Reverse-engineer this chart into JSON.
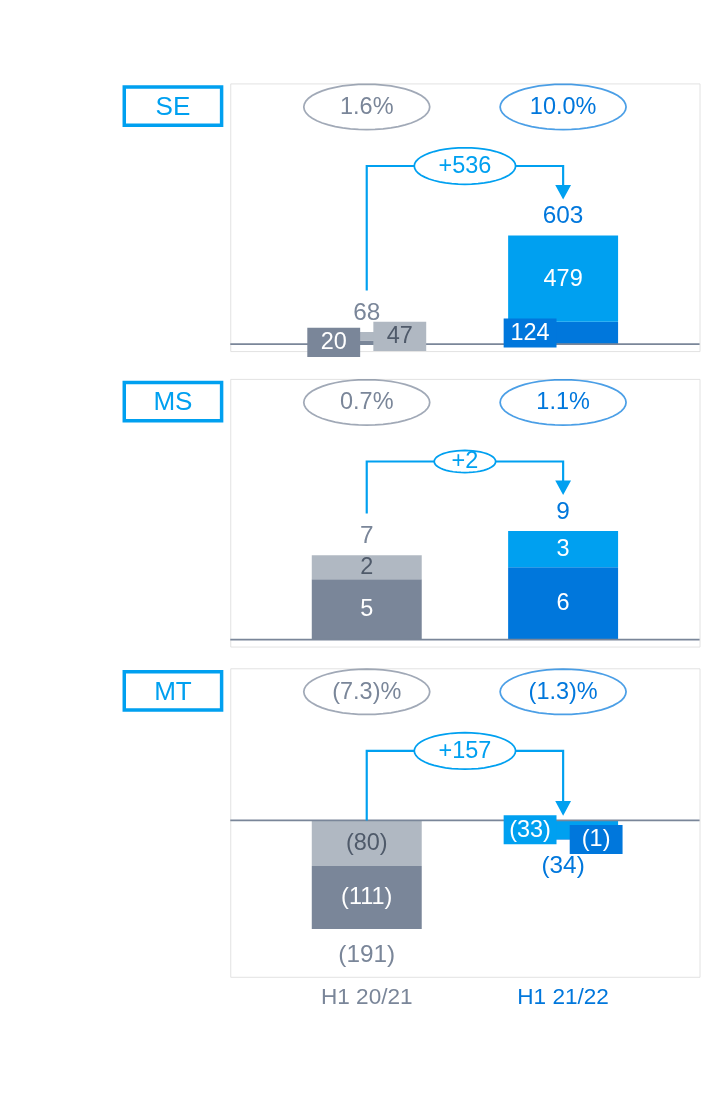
{
  "chart_data": [
    {
      "type": "bar",
      "title": "SE",
      "stacked": true,
      "categories": [
        null,
        null
      ],
      "tick_labels": false,
      "series": [
        {
          "colors": [
            "#7a8699",
            "#0077dc"
          ],
          "values": [
            20,
            124
          ],
          "value_labels": [
            "20",
            "124"
          ]
        },
        {
          "colors": [
            "#b0b8c2",
            "#00a0f0"
          ],
          "values": [
            47,
            479
          ],
          "value_labels": [
            "47",
            "479"
          ]
        }
      ],
      "totals": [
        "68",
        "603"
      ],
      "annotations": [
        "1.6%",
        "10.0%",
        "+536"
      ]
    },
    {
      "type": "bar",
      "title": "MS",
      "stacked": true,
      "categories": [
        null,
        null
      ],
      "tick_labels": false,
      "series": [
        {
          "colors": [
            "#7a8699",
            "#0077dc"
          ],
          "values": [
            5,
            6
          ],
          "value_labels": [
            "5",
            "6"
          ]
        },
        {
          "colors": [
            "#b0b8c2",
            "#00a0f0"
          ],
          "values": [
            2,
            3
          ],
          "value_labels": [
            "2",
            "3"
          ]
        }
      ],
      "totals": [
        "7",
        "9"
      ],
      "annotations": [
        "0.7%",
        "1.1%",
        "+2"
      ]
    },
    {
      "type": "bar",
      "title": "MT",
      "stacked": true,
      "categories": [
        "H1 20/21",
        "H1 21/22"
      ],
      "tick_labels": "x",
      "series": [
        {
          "colors": [
            "#b0b8c2",
            "#00a0f0"
          ],
          "values": [
            -80,
            -33
          ],
          "value_labels": [
            "(80)",
            "(33)"
          ]
        },
        {
          "colors": [
            "#7a8699",
            "#0077dc"
          ],
          "values": [
            -111,
            -1
          ],
          "value_labels": [
            "(111)",
            "(1)"
          ]
        }
      ],
      "totals": [
        "(191)",
        "(34)"
      ],
      "annotations": [
        "(7.3)%",
        "(1.3)%",
        "+157"
      ]
    }
  ]
}
